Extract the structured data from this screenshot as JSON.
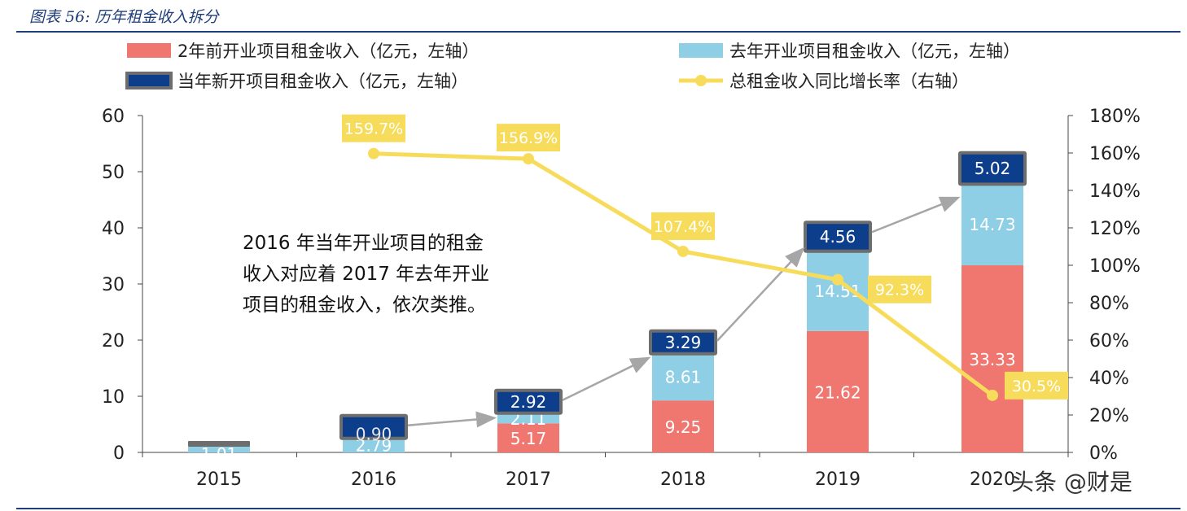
{
  "header": {
    "figure_title": "图表 56: 历年租金收入拆分"
  },
  "chart_data": {
    "type": "bar",
    "stacked": true,
    "categories": [
      "2015",
      "2016",
      "2017",
      "2018",
      "2019",
      "2020"
    ],
    "category_labels": [
      "2015",
      "2016",
      "2017",
      "2018",
      "2019",
      "2020"
    ],
    "series": [
      {
        "name": "2年前开业项目租金收入（亿元，左轴）",
        "color": "#f07670",
        "values": [
          null,
          null,
          5.17,
          9.25,
          21.62,
          33.33
        ],
        "labels": [
          "",
          "",
          "5.17",
          "9.25",
          "21.62",
          "33.33"
        ]
      },
      {
        "name": "去年开业项目租金收入（亿元，左轴）",
        "color": "#8fcfe6",
        "values": [
          1.01,
          2.79,
          2.11,
          8.61,
          14.51,
          14.73
        ],
        "labels": [
          "1.01",
          "2.79",
          "2.11",
          "8.61",
          "14.51",
          "14.73"
        ]
      },
      {
        "name": "当年新开项目租金收入（亿元，左轴）",
        "color": "#0d3e8c",
        "values": [
          null,
          0.9,
          2.92,
          3.29,
          4.56,
          5.02
        ],
        "labels": [
          "",
          "0.90",
          "2.92",
          "3.29",
          "4.56",
          "5.02"
        ]
      }
    ],
    "line_series": {
      "name": "总租金收入同比增长率（右轴）",
      "color": "#f7dc5c",
      "values": [
        null,
        159.7,
        156.9,
        107.4,
        92.3,
        30.5
      ],
      "labels": [
        "",
        "159.7%",
        "156.9%",
        "107.4%",
        "92.3%",
        "30.5%"
      ]
    },
    "left_axis": {
      "range": [
        0,
        60
      ],
      "ticks": [
        "0",
        "10",
        "20",
        "30",
        "40",
        "50",
        "60"
      ]
    },
    "right_axis": {
      "range": [
        0,
        180
      ],
      "ticks": [
        "0%",
        "20%",
        "40%",
        "60%",
        "80%",
        "100%",
        "120%",
        "140%",
        "160%",
        "180%"
      ]
    },
    "legend_order": [
      0,
      2,
      1,
      3
    ],
    "legend_position": "top",
    "annotation": [
      "2016 年当年开业项目的租金",
      "收入对应着 2017 年去年开业",
      "项目的租金收入，依次类推。"
    ],
    "grid": false
  },
  "watermark": "头条 @财是",
  "colors": {
    "title": "#1f3e7a",
    "arrow": "#a6a6a6",
    "cap_border": "#6d6d6d"
  }
}
